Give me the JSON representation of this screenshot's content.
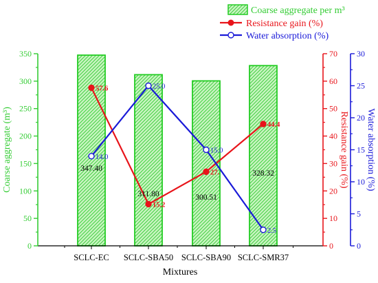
{
  "chart_data": {
    "type": "bar",
    "xlabel": "Mixtures",
    "categories": [
      "SCLC-EC",
      "SCLC-SBA50",
      "SCLC-SBA90",
      "SCLC-SMR37"
    ],
    "series": [
      {
        "name": "Coarse aggregate per m³",
        "kind": "bar",
        "axis": "left",
        "values": [
          347.4,
          311.8,
          300.51,
          328.32
        ],
        "value_labels": [
          "347.40",
          "311.80",
          "300.51",
          "328.32"
        ]
      },
      {
        "name": "Resistance gain (%)",
        "kind": "line",
        "axis": "right1",
        "values": [
          57.6,
          15.2,
          27.0,
          44.4
        ],
        "value_labels": [
          "57.6",
          "15.2",
          "27.",
          "44.4"
        ]
      },
      {
        "name": "Water absorption (%)",
        "kind": "line",
        "axis": "right2",
        "values": [
          14.0,
          25.0,
          15.0,
          2.5
        ],
        "value_labels": [
          "14.0",
          "25.0",
          "15.0",
          "2.5"
        ]
      }
    ],
    "axes": {
      "left": {
        "label": "Coarse aggregate (m³)",
        "range": [
          0,
          350
        ],
        "ticks": [
          0,
          50,
          100,
          150,
          200,
          250,
          300,
          350
        ],
        "tick_labels": [
          "0",
          "50",
          "100",
          "150",
          "200",
          "250",
          "300",
          "350"
        ]
      },
      "right1": {
        "label": "Resistance gain (%)",
        "range": [
          0,
          70
        ],
        "ticks": [
          0,
          10,
          20,
          30,
          40,
          50,
          60,
          70
        ],
        "tick_labels": [
          "0",
          "10",
          "20",
          "30",
          "40",
          "50",
          "60",
          "70"
        ]
      },
      "right2": {
        "label": "Water absorption (%)",
        "range": [
          0,
          30
        ],
        "ticks": [
          0,
          5,
          10,
          15,
          20,
          25,
          30
        ],
        "tick_labels": [
          "0",
          "5",
          "10",
          "15",
          "20",
          "25",
          "30"
        ]
      }
    },
    "legend": "top-right",
    "grid": false,
    "colors": {
      "bar_stroke": "#22cc22",
      "bar_fill": "#b8f0b0",
      "resistance": "#e8141a",
      "water": "#1a1ad8",
      "axis_left": "#33cc33",
      "axis_right1": "#e8141a",
      "axis_right2": "#1a1ad8",
      "axis_bottom": "#000000"
    }
  }
}
